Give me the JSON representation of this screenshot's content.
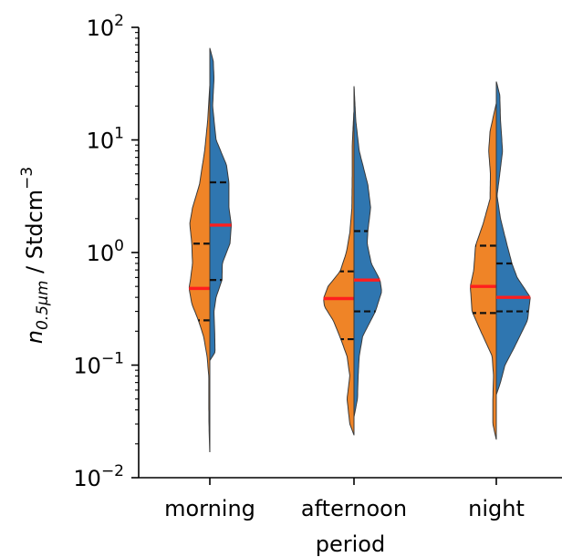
{
  "chart_data": {
    "type": "split-violin",
    "title": "",
    "xlabel": "period",
    "ylabel_main": "n",
    "ylabel_sub": "0.5μm",
    "ylabel_unit": " / Stdcm",
    "ylabel_exp": "−3",
    "yscale": "log",
    "ylim": [
      0.01,
      100
    ],
    "yticks": [
      {
        "base": "10",
        "exp": "2",
        "value": 100
      },
      {
        "base": "10",
        "exp": "1",
        "value": 10
      },
      {
        "base": "10",
        "exp": "0",
        "value": 1
      },
      {
        "base": "10",
        "exp": "−1",
        "value": 0.1
      },
      {
        "base": "10",
        "exp": "−2",
        "value": 0.01
      }
    ],
    "categories": [
      "morning",
      "afternoon",
      "night"
    ],
    "colors": {
      "left": "#ef8427",
      "right": "#2f76b0",
      "median": "#ff1e1e",
      "quartile": "#111111",
      "edge": "#3a3a3a"
    },
    "series": [
      {
        "side": "left",
        "violins": [
          {
            "min": 0.017,
            "max": 30,
            "median": 0.48,
            "q1": 0.25,
            "q3": 1.2,
            "profile": [
              [
                0.017,
                0.003
              ],
              [
                0.03,
                0.025
              ],
              [
                0.05,
                0.03
              ],
              [
                0.08,
                0.03
              ],
              [
                0.12,
                0.08
              ],
              [
                0.18,
                0.18
              ],
              [
                0.25,
                0.33
              ],
              [
                0.35,
                0.52
              ],
              [
                0.48,
                0.6
              ],
              [
                0.6,
                0.55
              ],
              [
                0.8,
                0.5
              ],
              [
                1.2,
                0.52
              ],
              [
                1.8,
                0.58
              ],
              [
                2.5,
                0.5
              ],
              [
                4,
                0.3
              ],
              [
                8,
                0.15
              ],
              [
                15,
                0.06
              ],
              [
                30,
                0.003
              ]
            ]
          },
          {
            "min": 0.024,
            "max": 18,
            "median": 0.39,
            "q1": 0.17,
            "q3": 0.68,
            "profile": [
              [
                0.024,
                0.003
              ],
              [
                0.03,
                0.12
              ],
              [
                0.05,
                0.2
              ],
              [
                0.08,
                0.12
              ],
              [
                0.12,
                0.2
              ],
              [
                0.17,
                0.38
              ],
              [
                0.25,
                0.6
              ],
              [
                0.33,
                0.85
              ],
              [
                0.39,
                0.88
              ],
              [
                0.5,
                0.75
              ],
              [
                0.68,
                0.4
              ],
              [
                1,
                0.22
              ],
              [
                1.5,
                0.12
              ],
              [
                2.5,
                0.06
              ],
              [
                5,
                0.05
              ],
              [
                9,
                0.05
              ],
              [
                18,
                0.003
              ]
            ]
          },
          {
            "min": 0.022,
            "max": 21,
            "median": 0.5,
            "q1": 0.29,
            "q3": 1.15,
            "profile": [
              [
                0.022,
                0.003
              ],
              [
                0.03,
                0.1
              ],
              [
                0.05,
                0.1
              ],
              [
                0.08,
                0.08
              ],
              [
                0.12,
                0.12
              ],
              [
                0.2,
                0.45
              ],
              [
                0.3,
                0.7
              ],
              [
                0.5,
                0.75
              ],
              [
                0.7,
                0.65
              ],
              [
                1.15,
                0.6
              ],
              [
                1.8,
                0.38
              ],
              [
                3,
                0.18
              ],
              [
                5,
                0.17
              ],
              [
                8,
                0.22
              ],
              [
                12,
                0.18
              ],
              [
                21,
                0.003
              ]
            ]
          }
        ]
      },
      {
        "side": "right",
        "violins": [
          {
            "min": 0.11,
            "max": 65,
            "median": 1.75,
            "q1": 0.57,
            "q3": 4.2,
            "profile": [
              [
                0.11,
                0.003
              ],
              [
                0.13,
                0.15
              ],
              [
                0.2,
                0.14
              ],
              [
                0.3,
                0.12
              ],
              [
                0.4,
                0.18
              ],
              [
                0.57,
                0.35
              ],
              [
                0.8,
                0.36
              ],
              [
                1.2,
                0.58
              ],
              [
                1.75,
                0.62
              ],
              [
                2.5,
                0.55
              ],
              [
                4.2,
                0.55
              ],
              [
                6,
                0.48
              ],
              [
                10,
                0.18
              ],
              [
                20,
                0.08
              ],
              [
                35,
                0.12
              ],
              [
                50,
                0.1
              ],
              [
                65,
                0.003
              ]
            ]
          },
          {
            "min": 0.035,
            "max": 30,
            "median": 0.57,
            "q1": 0.3,
            "q3": 1.55,
            "profile": [
              [
                0.035,
                0.003
              ],
              [
                0.05,
                0.1
              ],
              [
                0.08,
                0.12
              ],
              [
                0.12,
                0.15
              ],
              [
                0.18,
                0.25
              ],
              [
                0.3,
                0.62
              ],
              [
                0.45,
                0.8
              ],
              [
                0.57,
                0.75
              ],
              [
                0.8,
                0.5
              ],
              [
                1.2,
                0.38
              ],
              [
                1.55,
                0.4
              ],
              [
                2.5,
                0.48
              ],
              [
                4,
                0.4
              ],
              [
                8,
                0.15
              ],
              [
                15,
                0.05
              ],
              [
                30,
                0.003
              ]
            ]
          },
          {
            "min": 0.055,
            "max": 33,
            "median": 0.4,
            "q1": 0.3,
            "q3": 0.8,
            "profile": [
              [
                0.055,
                0.003
              ],
              [
                0.07,
                0.12
              ],
              [
                0.1,
                0.25
              ],
              [
                0.15,
                0.55
              ],
              [
                0.25,
                0.9
              ],
              [
                0.4,
                0.98
              ],
              [
                0.6,
                0.6
              ],
              [
                0.8,
                0.45
              ],
              [
                1.2,
                0.3
              ],
              [
                2,
                0.12
              ],
              [
                3.2,
                0.02
              ],
              [
                5,
                0.1
              ],
              [
                8,
                0.18
              ],
              [
                15,
                0.12
              ],
              [
                25,
                0.1
              ],
              [
                33,
                0.003
              ]
            ]
          }
        ]
      }
    ]
  }
}
